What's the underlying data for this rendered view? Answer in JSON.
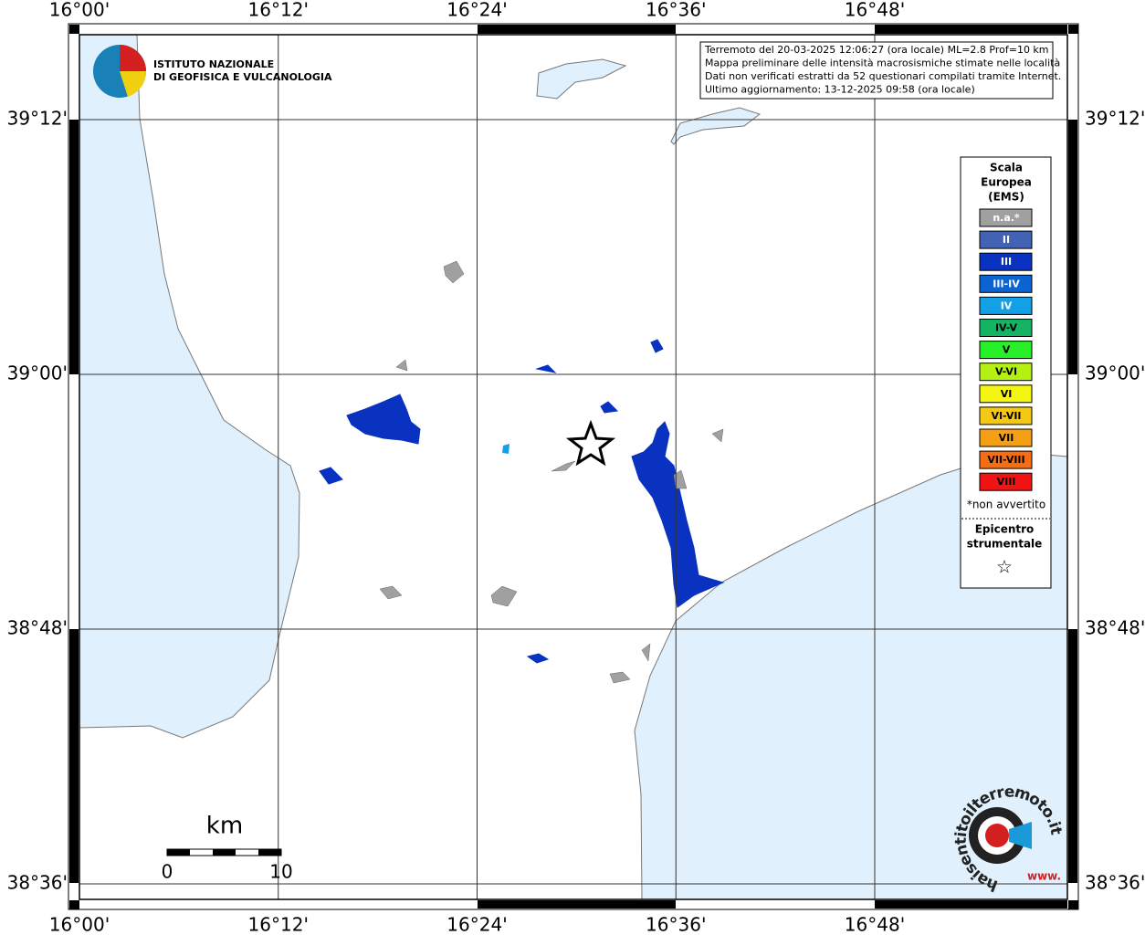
{
  "header": {
    "institute": [
      "ISTITUTO NAZIONALE",
      "DI GEOFISICA E VULCANOLOGIA"
    ]
  },
  "info": [
    "Terremoto del 20-03-2025 12:06:27 (ora locale) ML=2.8 Prof=10 km",
    "Mappa preliminare delle intensità macrosismiche stimate nelle località",
    "Dati non verificati estratti da 52 questionari compilati tramite Internet.",
    "Ultimo aggiornamento: 13-12-2025 09:58 (ora locale)"
  ],
  "lon_labels": [
    "16°00'",
    "16°12'",
    "16°24'",
    "16°36'",
    "16°48'"
  ],
  "lat_labels": [
    "39°12'",
    "39°00'",
    "38°48'",
    "38°36'"
  ],
  "legend": {
    "title": [
      "Scala",
      "Europea",
      "(EMS)"
    ],
    "items": [
      {
        "label": "n.a.*",
        "color": "#a0a0a0",
        "text": "#ffffff"
      },
      {
        "label": "II",
        "color": "#4262b4",
        "text": "#ffffff"
      },
      {
        "label": "III",
        "color": "#0a32c0",
        "text": "#ffffff"
      },
      {
        "label": "III-IV",
        "color": "#0a64d2",
        "text": "#ffffff"
      },
      {
        "label": "IV",
        "color": "#14a0e6",
        "text": "#ffffff"
      },
      {
        "label": "IV-V",
        "color": "#14b464",
        "text": "#000000"
      },
      {
        "label": "V",
        "color": "#28f028",
        "text": "#000000"
      },
      {
        "label": "V-VI",
        "color": "#b4f014",
        "text": "#000000"
      },
      {
        "label": "VI",
        "color": "#f5f514",
        "text": "#000000"
      },
      {
        "label": "VI-VII",
        "color": "#f5c814",
        "text": "#000000"
      },
      {
        "label": "VII",
        "color": "#f5a014",
        "text": "#000000"
      },
      {
        "label": "VII-VIII",
        "color": "#f56e14",
        "text": "#000000"
      },
      {
        "label": "VIII",
        "color": "#f01414",
        "text": "#000000"
      }
    ],
    "note": "*non avvertito",
    "epicenter": [
      "Epicentro",
      "strumentale"
    ],
    "symbol": "☆"
  },
  "scale": {
    "unit": "km",
    "ticks": [
      "0",
      "10"
    ]
  },
  "brand": {
    "ring": "haisentitoilterremoto.it",
    "www": "www."
  }
}
